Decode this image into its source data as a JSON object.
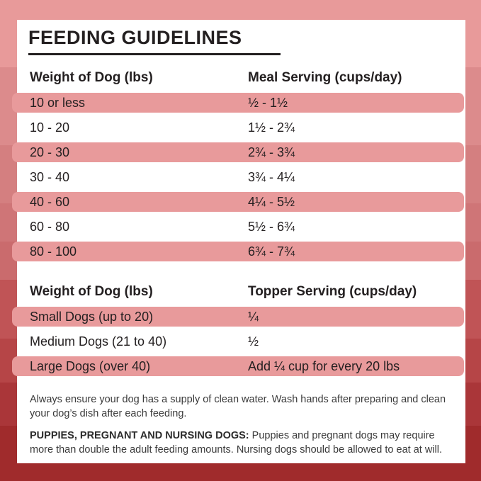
{
  "title": "FEEDING GUIDELINES",
  "colors": {
    "row_highlight": "#e89a9b",
    "background_top": "#e89a9a",
    "background_bottom": "#a02b2c",
    "text": "#231f20",
    "card": "#ffffff"
  },
  "meal_table": {
    "col1_header": "Weight of Dog (lbs)",
    "col2_header": "Meal Serving (cups/day)",
    "rows": [
      {
        "weight": "10 or less",
        "serving": "½ - 1½"
      },
      {
        "weight": "10 - 20",
        "serving": "1½ - 2¾"
      },
      {
        "weight": "20 - 30",
        "serving": "2¾ - 3¾"
      },
      {
        "weight": "30 - 40",
        "serving": "3¾ - 4¼"
      },
      {
        "weight": "40 - 60",
        "serving": "4¼ - 5½"
      },
      {
        "weight": "60 - 80",
        "serving": "5½ - 6¾"
      },
      {
        "weight": "80 - 100",
        "serving": "6¾ - 7¾"
      }
    ]
  },
  "topper_table": {
    "col1_header": "Weight of Dog (lbs)",
    "col2_header": "Topper Serving (cups/day)",
    "rows": [
      {
        "weight": "Small Dogs (up to 20)",
        "serving": "¼"
      },
      {
        "weight": "Medium Dogs (21 to 40)",
        "serving": "½"
      },
      {
        "weight": "Large Dogs (over 40)",
        "serving": "Add ¼ cup for every 20 lbs"
      }
    ]
  },
  "notes": {
    "water": "Always ensure your dog has a supply of clean water. Wash hands after preparing and clean your dog’s dish after each feeding.",
    "puppies_label": "PUPPIES, PREGNANT AND NURSING DOGS:",
    "puppies_text": " Puppies and pregnant dogs may require more than double the adult feeding amounts. Nursing dogs should be allowed to eat at will."
  }
}
